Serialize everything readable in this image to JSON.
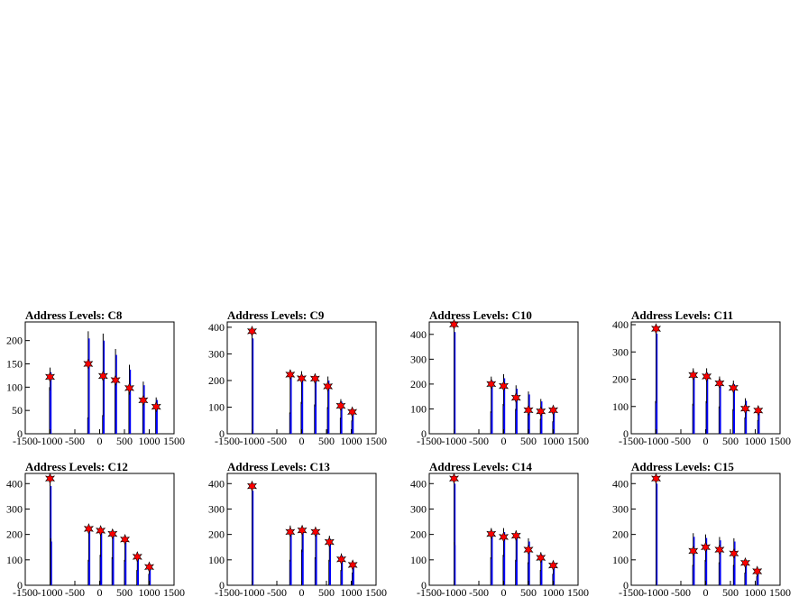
{
  "chart_data": [
    {
      "type": "bar",
      "title": "Address Levels: C8",
      "xlim": [
        -1500,
        1500
      ],
      "ylim": [
        0,
        240
      ],
      "xticks": [
        -1500,
        -1000,
        -500,
        0,
        500,
        1000,
        1500
      ],
      "yticks": [
        0,
        50,
        100,
        150,
        200
      ],
      "peaks": [
        {
          "x": -1000,
          "y": 122
        },
        {
          "x": -230,
          "y": 150
        },
        {
          "x": 70,
          "y": 124
        },
        {
          "x": 320,
          "y": 115
        },
        {
          "x": 600,
          "y": 98
        },
        {
          "x": 880,
          "y": 72
        },
        {
          "x": 1140,
          "y": 58
        }
      ],
      "bars": [
        [
          -1000,
          142
        ],
        [
          -1010,
          100
        ],
        [
          -230,
          220
        ],
        [
          -240,
          35
        ],
        [
          70,
          215
        ],
        [
          60,
          40
        ],
        [
          320,
          182
        ],
        [
          310,
          120
        ],
        [
          600,
          148
        ],
        [
          590,
          90
        ],
        [
          880,
          112
        ],
        [
          870,
          70
        ],
        [
          1140,
          78
        ],
        [
          1130,
          55
        ]
      ]
    },
    {
      "type": "bar",
      "title": "Address Levels: C9",
      "xlim": [
        -1500,
        1500
      ],
      "ylim": [
        0,
        420
      ],
      "xticks": [
        -1500,
        -1000,
        -500,
        0,
        500,
        1000,
        1500
      ],
      "yticks": [
        0,
        100,
        200,
        300,
        400
      ],
      "peaks": [
        {
          "x": -1000,
          "y": 385
        },
        {
          "x": -230,
          "y": 222
        },
        {
          "x": 0,
          "y": 208
        },
        {
          "x": 270,
          "y": 207
        },
        {
          "x": 530,
          "y": 178
        },
        {
          "x": 790,
          "y": 105
        },
        {
          "x": 1020,
          "y": 82
        }
      ],
      "bars": [
        [
          -1000,
          385
        ],
        [
          -230,
          240
        ],
        [
          -240,
          80
        ],
        [
          0,
          235
        ],
        [
          -10,
          120
        ],
        [
          270,
          225
        ],
        [
          260,
          110
        ],
        [
          530,
          215
        ],
        [
          520,
          100
        ],
        [
          790,
          130
        ],
        [
          780,
          60
        ],
        [
          1020,
          95
        ],
        [
          1010,
          50
        ]
      ]
    },
    {
      "type": "bar",
      "title": "Address Levels: C10",
      "xlim": [
        -1500,
        1500
      ],
      "ylim": [
        0,
        450
      ],
      "xticks": [
        -1500,
        -1000,
        -500,
        0,
        500,
        1000,
        1500
      ],
      "yticks": [
        0,
        100,
        200,
        300,
        400
      ],
      "peaks": [
        {
          "x": -1000,
          "y": 440
        },
        {
          "x": -250,
          "y": 200
        },
        {
          "x": 0,
          "y": 192
        },
        {
          "x": 250,
          "y": 145
        },
        {
          "x": 500,
          "y": 95
        },
        {
          "x": 750,
          "y": 90
        },
        {
          "x": 1000,
          "y": 95
        }
      ],
      "bars": [
        [
          -1000,
          440
        ],
        [
          -250,
          230
        ],
        [
          -260,
          90
        ],
        [
          0,
          240
        ],
        [
          -10,
          120
        ],
        [
          250,
          195
        ],
        [
          240,
          100
        ],
        [
          500,
          170
        ],
        [
          490,
          80
        ],
        [
          750,
          140
        ],
        [
          740,
          60
        ],
        [
          1000,
          110
        ],
        [
          990,
          50
        ]
      ]
    },
    {
      "type": "bar",
      "title": "Address Levels: C11",
      "xlim": [
        -1500,
        1500
      ],
      "ylim": [
        0,
        410
      ],
      "xticks": [
        -1500,
        -1000,
        -500,
        0,
        500,
        1000,
        1500
      ],
      "yticks": [
        0,
        100,
        200,
        300,
        400
      ],
      "peaks": [
        {
          "x": -1000,
          "y": 385
        },
        {
          "x": -250,
          "y": 215
        },
        {
          "x": 20,
          "y": 210
        },
        {
          "x": 280,
          "y": 185
        },
        {
          "x": 560,
          "y": 168
        },
        {
          "x": 800,
          "y": 92
        },
        {
          "x": 1060,
          "y": 85
        }
      ],
      "bars": [
        [
          -1000,
          395
        ],
        [
          -1010,
          120
        ],
        [
          -250,
          240
        ],
        [
          -260,
          110
        ],
        [
          20,
          240
        ],
        [
          10,
          120
        ],
        [
          280,
          210
        ],
        [
          270,
          100
        ],
        [
          560,
          195
        ],
        [
          550,
          90
        ],
        [
          800,
          130
        ],
        [
          790,
          60
        ],
        [
          1060,
          100
        ],
        [
          1050,
          50
        ]
      ]
    },
    {
      "type": "bar",
      "title": "Address Levels: C12",
      "xlim": [
        -1500,
        1500
      ],
      "ylim": [
        0,
        440
      ],
      "xticks": [
        -1500,
        -1000,
        -500,
        0,
        500,
        1000,
        1500
      ],
      "yticks": [
        0,
        100,
        200,
        300,
        400
      ],
      "peaks": [
        {
          "x": -1000,
          "y": 420
        },
        {
          "x": -220,
          "y": 222
        },
        {
          "x": 20,
          "y": 215
        },
        {
          "x": 260,
          "y": 202
        },
        {
          "x": 510,
          "y": 180
        },
        {
          "x": 760,
          "y": 112
        },
        {
          "x": 1000,
          "y": 72
        }
      ],
      "bars": [
        [
          -1000,
          420
        ],
        [
          -990,
          185
        ],
        [
          -220,
          235
        ],
        [
          -230,
          100
        ],
        [
          20,
          225
        ],
        [
          10,
          120
        ],
        [
          260,
          220
        ],
        [
          250,
          110
        ],
        [
          510,
          195
        ],
        [
          500,
          100
        ],
        [
          760,
          130
        ],
        [
          750,
          60
        ],
        [
          1000,
          85
        ],
        [
          990,
          45
        ]
      ]
    },
    {
      "type": "bar",
      "title": "Address Levels: C13",
      "xlim": [
        -1500,
        1500
      ],
      "ylim": [
        0,
        440
      ],
      "xticks": [
        -1500,
        -1000,
        -500,
        0,
        500,
        1000,
        1500
      ],
      "yticks": [
        0,
        100,
        200,
        300,
        400
      ],
      "peaks": [
        {
          "x": -1000,
          "y": 390
        },
        {
          "x": -230,
          "y": 210
        },
        {
          "x": 10,
          "y": 216
        },
        {
          "x": 280,
          "y": 210
        },
        {
          "x": 560,
          "y": 170
        },
        {
          "x": 800,
          "y": 102
        },
        {
          "x": 1030,
          "y": 80
        }
      ],
      "bars": [
        [
          -1000,
          400
        ],
        [
          -230,
          235
        ],
        [
          -240,
          100
        ],
        [
          10,
          235
        ],
        [
          0,
          140
        ],
        [
          280,
          225
        ],
        [
          270,
          110
        ],
        [
          560,
          195
        ],
        [
          550,
          100
        ],
        [
          800,
          125
        ],
        [
          790,
          60
        ],
        [
          1030,
          95
        ],
        [
          1020,
          50
        ]
      ]
    },
    {
      "type": "bar",
      "title": "Address Levels: C14",
      "xlim": [
        -1500,
        1500
      ],
      "ylim": [
        0,
        440
      ],
      "xticks": [
        -1500,
        -1000,
        -500,
        0,
        500,
        1000,
        1500
      ],
      "yticks": [
        0,
        100,
        200,
        300,
        400
      ],
      "peaks": [
        {
          "x": -1000,
          "y": 420
        },
        {
          "x": -250,
          "y": 202
        },
        {
          "x": 0,
          "y": 190
        },
        {
          "x": 250,
          "y": 195
        },
        {
          "x": 500,
          "y": 140
        },
        {
          "x": 750,
          "y": 108
        },
        {
          "x": 1000,
          "y": 78
        }
      ],
      "bars": [
        [
          -1000,
          430
        ],
        [
          -1000,
          170
        ],
        [
          -250,
          225
        ],
        [
          -260,
          110
        ],
        [
          0,
          225
        ],
        [
          -10,
          120
        ],
        [
          250,
          215
        ],
        [
          240,
          100
        ],
        [
          500,
          185
        ],
        [
          490,
          90
        ],
        [
          750,
          130
        ],
        [
          740,
          60
        ],
        [
          1000,
          95
        ],
        [
          990,
          45
        ]
      ]
    },
    {
      "type": "bar",
      "title": "Address Levels: C15",
      "xlim": [
        -1500,
        1500
      ],
      "ylim": [
        0,
        440
      ],
      "xticks": [
        -1500,
        -1000,
        -500,
        0,
        500,
        1000,
        1500
      ],
      "yticks": [
        0,
        100,
        200,
        300,
        400
      ],
      "peaks": [
        {
          "x": -1000,
          "y": 420
        },
        {
          "x": -250,
          "y": 135
        },
        {
          "x": 0,
          "y": 150
        },
        {
          "x": 280,
          "y": 140
        },
        {
          "x": 570,
          "y": 125
        },
        {
          "x": 800,
          "y": 88
        },
        {
          "x": 1040,
          "y": 55
        }
      ],
      "bars": [
        [
          -1000,
          430
        ],
        [
          -250,
          205
        ],
        [
          -260,
          80
        ],
        [
          0,
          200
        ],
        [
          -10,
          100
        ],
        [
          280,
          190
        ],
        [
          270,
          90
        ],
        [
          570,
          185
        ],
        [
          560,
          80
        ],
        [
          800,
          100
        ],
        [
          790,
          50
        ],
        [
          1040,
          65
        ],
        [
          1030,
          35
        ]
      ]
    }
  ],
  "colors": {
    "bar": "#0000ff",
    "bar_dark": "#000000",
    "marker": "#ff0000",
    "axis": "#000000"
  }
}
